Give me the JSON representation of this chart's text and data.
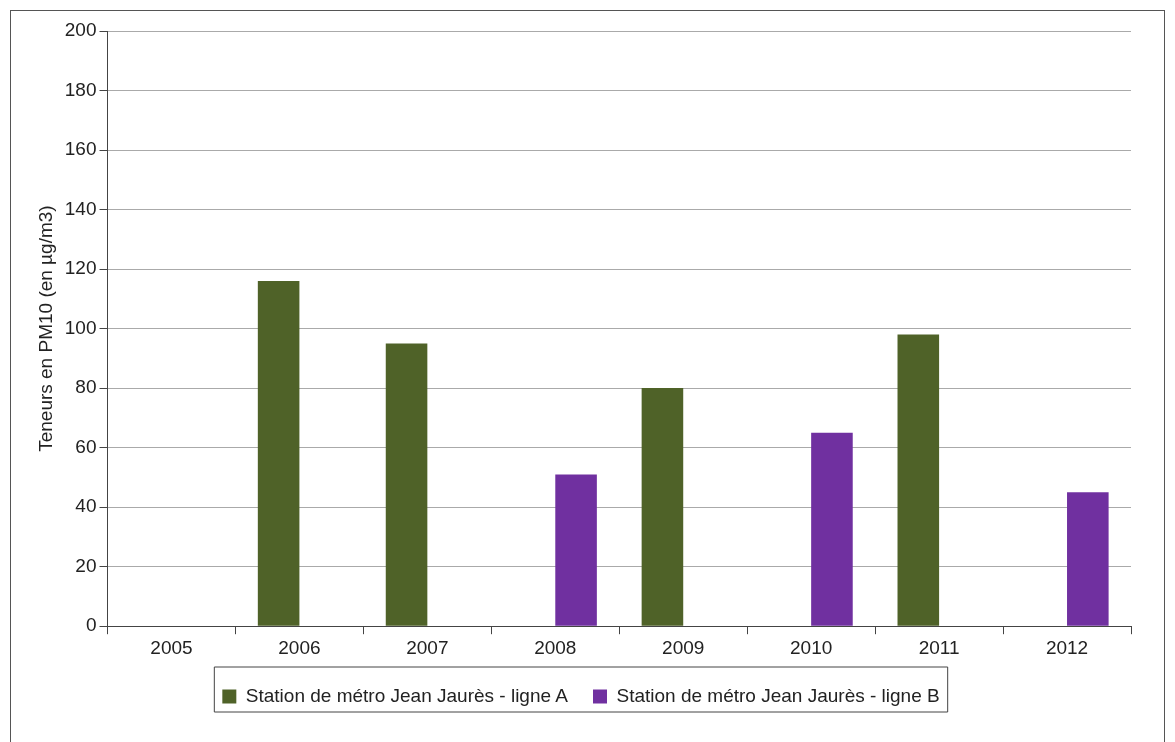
{
  "chart_data": {
    "type": "bar",
    "ylabel": "Teneurs en PM10 (en µg/m3)",
    "categories": [
      "2005",
      "2006",
      "2007",
      "2008",
      "2009",
      "2010",
      "2011",
      "2012"
    ],
    "series": [
      {
        "name": "Station de métro Jean Jaurès - ligne A",
        "color": "#4f6228",
        "values": [
          null,
          116,
          95,
          null,
          80,
          null,
          98,
          null
        ]
      },
      {
        "name": "Station de métro Jean Jaurès - ligne B",
        "color": "#7030a0",
        "values": [
          null,
          null,
          null,
          51,
          null,
          65,
          null,
          45
        ]
      }
    ],
    "ylim": [
      0,
      200
    ],
    "yticks": [
      0,
      20,
      40,
      60,
      80,
      100,
      120,
      140,
      160,
      180,
      200
    ],
    "grid": "y",
    "legend": "bottom"
  }
}
